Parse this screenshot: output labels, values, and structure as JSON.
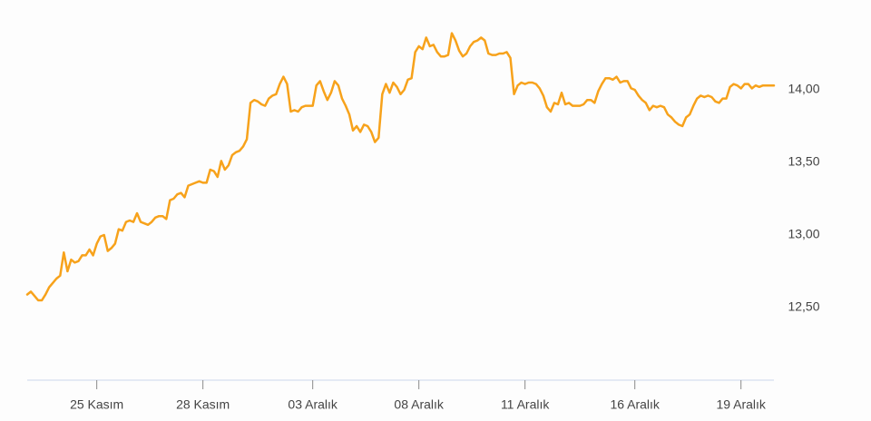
{
  "chart_data": {
    "type": "line",
    "color": "#f7a21b",
    "categories": [
      null,
      null,
      null,
      null,
      null,
      null,
      null,
      null,
      null,
      null,
      null,
      null,
      null,
      null,
      null,
      null,
      null,
      null,
      null,
      "25 Kasım",
      null,
      null,
      null,
      null,
      null,
      null,
      null,
      null,
      null,
      null,
      null,
      null,
      null,
      null,
      null,
      null,
      null,
      null,
      null,
      null,
      null,
      null,
      null,
      null,
      null,
      null,
      null,
      null,
      "28 Kasım",
      null,
      null,
      null,
      null,
      null,
      null,
      null,
      null,
      null,
      null,
      null,
      null,
      null,
      null,
      null,
      null,
      null,
      null,
      null,
      null,
      null,
      null,
      null,
      null,
      null,
      null,
      null,
      null,
      null,
      "03 Aralık",
      null,
      null,
      null,
      null,
      null,
      null,
      null,
      null,
      null,
      null,
      null,
      null,
      null,
      null,
      null,
      null,
      null,
      null,
      null,
      null,
      null,
      null,
      null,
      null,
      null,
      null,
      null,
      null,
      "08 Aralık",
      null,
      null,
      null,
      null,
      null,
      null,
      null,
      null,
      null,
      null,
      null,
      null,
      null,
      null,
      null,
      null,
      null,
      null,
      null,
      null,
      null,
      null,
      null,
      null,
      null,
      null,
      null,
      null,
      "11 Aralık",
      null,
      null,
      null,
      null,
      null,
      null,
      null,
      null,
      null,
      null,
      null,
      null,
      null,
      null,
      null,
      null,
      null,
      null,
      null,
      null,
      null,
      null,
      null,
      null,
      null,
      null,
      null,
      null,
      null,
      "16 Aralık",
      null,
      null,
      null,
      null,
      null,
      null,
      null,
      null,
      null,
      null,
      null,
      null,
      null,
      null,
      null,
      null,
      null,
      null,
      null,
      null,
      null,
      null,
      null,
      null,
      null,
      null,
      null,
      null,
      "19 Aralık",
      null,
      null,
      null,
      null,
      null,
      null,
      null,
      null,
      null
    ],
    "values": [
      12.59,
      12.61,
      12.58,
      12.55,
      12.55,
      12.59,
      12.64,
      12.67,
      12.7,
      12.72,
      12.88,
      12.75,
      12.83,
      12.81,
      12.82,
      12.86,
      12.86,
      12.9,
      12.86,
      12.94,
      12.99,
      13.0,
      12.89,
      12.91,
      12.94,
      13.04,
      13.03,
      13.09,
      13.1,
      13.09,
      13.15,
      13.09,
      13.08,
      13.07,
      13.09,
      13.12,
      13.13,
      13.13,
      13.11,
      13.24,
      13.25,
      13.28,
      13.29,
      13.26,
      13.34,
      13.35,
      13.36,
      13.37,
      13.36,
      13.36,
      13.45,
      13.44,
      13.4,
      13.51,
      13.45,
      13.48,
      13.55,
      13.57,
      13.58,
      13.61,
      13.66,
      13.91,
      13.93,
      13.92,
      13.9,
      13.89,
      13.94,
      13.96,
      13.97,
      14.04,
      14.09,
      14.04,
      13.85,
      13.86,
      13.85,
      13.88,
      13.89,
      13.89,
      13.89,
      14.03,
      14.06,
      13.99,
      13.93,
      13.98,
      14.06,
      14.03,
      13.94,
      13.89,
      13.83,
      13.72,
      13.75,
      13.71,
      13.76,
      13.75,
      13.71,
      13.64,
      13.67,
      13.97,
      14.04,
      13.98,
      14.05,
      14.02,
      13.97,
      14.0,
      14.07,
      14.08,
      14.26,
      14.3,
      14.28,
      14.36,
      14.3,
      14.31,
      14.26,
      14.23,
      14.23,
      14.24,
      14.39,
      14.34,
      14.27,
      14.23,
      14.25,
      14.3,
      14.33,
      14.34,
      14.36,
      14.34,
      14.25,
      14.24,
      14.24,
      14.25,
      14.25,
      14.26,
      14.22,
      13.97,
      14.03,
      14.05,
      14.04,
      14.05,
      14.05,
      14.04,
      14.01,
      13.96,
      13.88,
      13.85,
      13.91,
      13.9,
      13.98,
      13.9,
      13.91,
      13.89,
      13.89,
      13.89,
      13.9,
      13.93,
      13.93,
      13.91,
      13.99,
      14.04,
      14.08,
      14.08,
      14.07,
      14.09,
      14.05,
      14.06,
      14.06,
      14.01,
      14.0,
      13.96,
      13.93,
      13.91,
      13.86,
      13.89,
      13.88,
      13.89,
      13.88,
      13.83,
      13.81,
      13.78,
      13.76,
      13.75,
      13.81,
      13.83,
      13.89,
      13.94,
      13.96,
      13.95,
      13.96,
      13.95,
      13.92,
      13.91,
      13.94,
      13.94,
      14.02,
      14.04,
      14.03,
      14.01,
      14.04,
      14.04,
      14.01,
      14.03,
      14.02,
      14.03,
      14.03,
      14.03,
      14.03
    ],
    "ylim": [
      12.0,
      14.6
    ],
    "yticks": [
      {
        "value": 12.5,
        "label": "12,50"
      },
      {
        "value": 13,
        "label": "13,00"
      },
      {
        "value": 13.5,
        "label": "13,50"
      },
      {
        "value": 14,
        "label": "14,00"
      }
    ],
    "grid": false
  }
}
